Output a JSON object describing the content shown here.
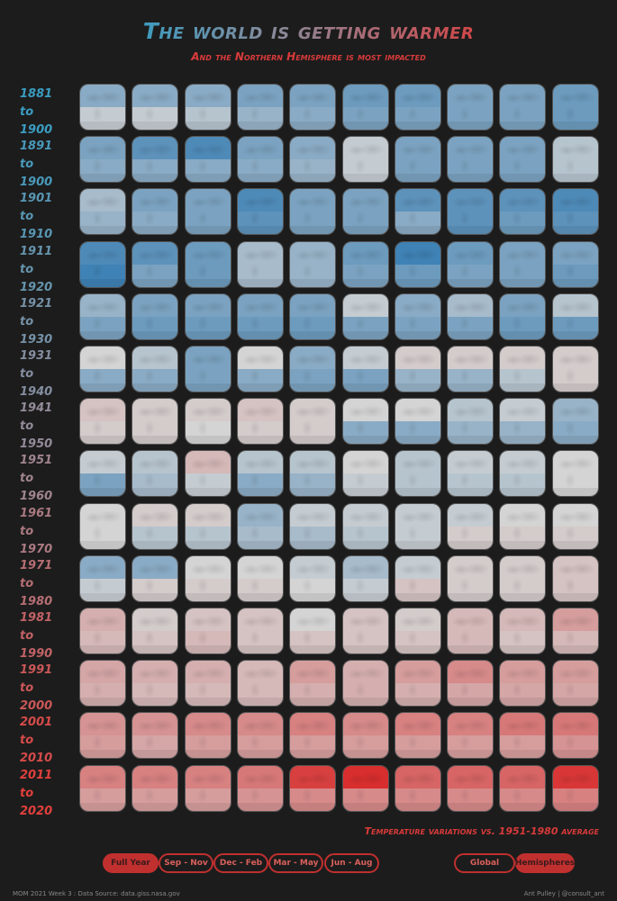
{
  "title": "The world is getting warmer",
  "subtitle": "And the Northern Hemisphere is most impacted",
  "note": "Temperature variations vs. 1951-1980 average",
  "colors": {
    "blue": "#3f82b5",
    "neutral": "#d4d4d4",
    "red": "#d92e2e",
    "label_start": "#3a9cc0",
    "label_mid": "#9a8a96",
    "label_end": "#e0403c"
  },
  "chart_data": {
    "type": "heatmap",
    "description_units": "°C anomaly, top half = Northern Hemisphere, bottom half = Southern Hemisphere",
    "rows": [
      {
        "label": "1881 to 1900",
        "values": [
          [
            -0.25,
            -0.05
          ],
          [
            -0.25,
            -0.05
          ],
          [
            -0.25,
            -0.1
          ],
          [
            -0.3,
            -0.2
          ],
          [
            -0.3,
            -0.25
          ],
          [
            -0.35,
            -0.3
          ],
          [
            -0.35,
            -0.3
          ],
          [
            -0.3,
            -0.3
          ],
          [
            -0.3,
            -0.3
          ],
          [
            -0.35,
            -0.35
          ]
        ]
      },
      {
        "label": "1891 to 1900",
        "values": [
          [
            -0.3,
            -0.25
          ],
          [
            -0.4,
            -0.25
          ],
          [
            -0.45,
            -0.25
          ],
          [
            -0.3,
            -0.25
          ],
          [
            -0.25,
            -0.2
          ],
          [
            -0.05,
            -0.05
          ],
          [
            -0.3,
            -0.3
          ],
          [
            -0.3,
            -0.3
          ],
          [
            -0.3,
            -0.3
          ],
          [
            -0.1,
            -0.1
          ]
        ]
      },
      {
        "label": "1901 to 1910",
        "values": [
          [
            -0.15,
            -0.2
          ],
          [
            -0.3,
            -0.25
          ],
          [
            -0.3,
            -0.3
          ],
          [
            -0.45,
            -0.4
          ],
          [
            -0.3,
            -0.3
          ],
          [
            -0.3,
            -0.3
          ],
          [
            -0.4,
            -0.25
          ],
          [
            -0.4,
            -0.4
          ],
          [
            -0.4,
            -0.35
          ],
          [
            -0.45,
            -0.4
          ]
        ]
      },
      {
        "label": "1911 to 1920",
        "values": [
          [
            -0.45,
            -0.5
          ],
          [
            -0.4,
            -0.3
          ],
          [
            -0.35,
            -0.35
          ],
          [
            -0.15,
            -0.15
          ],
          [
            -0.2,
            -0.2
          ],
          [
            -0.35,
            -0.3
          ],
          [
            -0.5,
            -0.35
          ],
          [
            -0.35,
            -0.3
          ],
          [
            -0.3,
            -0.3
          ],
          [
            -0.3,
            -0.35
          ]
        ]
      },
      {
        "label": "1921 to 1930",
        "values": [
          [
            -0.2,
            -0.3
          ],
          [
            -0.3,
            -0.35
          ],
          [
            -0.3,
            -0.35
          ],
          [
            -0.3,
            -0.35
          ],
          [
            -0.3,
            -0.35
          ],
          [
            -0.05,
            -0.3
          ],
          [
            -0.25,
            -0.3
          ],
          [
            -0.15,
            -0.3
          ],
          [
            -0.3,
            -0.35
          ],
          [
            -0.1,
            -0.35
          ]
        ]
      },
      {
        "label": "1931 to 1940",
        "values": [
          [
            0,
            -0.25
          ],
          [
            -0.1,
            -0.25
          ],
          [
            -0.3,
            -0.3
          ],
          [
            0,
            -0.25
          ],
          [
            -0.25,
            -0.3
          ],
          [
            -0.05,
            -0.3
          ],
          [
            0.05,
            -0.2
          ],
          [
            0.05,
            -0.2
          ],
          [
            0.05,
            -0.1
          ],
          [
            0.05,
            0.05
          ]
        ]
      },
      {
        "label": "1941 to 1950",
        "values": [
          [
            0.1,
            0.05
          ],
          [
            0.05,
            0.05
          ],
          [
            0.05,
            0
          ],
          [
            0.1,
            0.05
          ],
          [
            0.05,
            0.05
          ],
          [
            0,
            -0.25
          ],
          [
            0,
            -0.25
          ],
          [
            -0.1,
            -0.2
          ],
          [
            -0.05,
            -0.2
          ],
          [
            -0.2,
            -0.25
          ]
        ]
      },
      {
        "label": "1951 to 1960",
        "values": [
          [
            -0.05,
            -0.3
          ],
          [
            -0.1,
            -0.15
          ],
          [
            0.15,
            -0.05
          ],
          [
            -0.1,
            -0.25
          ],
          [
            -0.1,
            -0.2
          ],
          [
            0,
            -0.05
          ],
          [
            -0.1,
            -0.1
          ],
          [
            -0.05,
            -0.1
          ],
          [
            -0.05,
            -0.1
          ],
          [
            0,
            0
          ]
        ]
      },
      {
        "label": "1961 to 1970",
        "values": [
          [
            0,
            0
          ],
          [
            0.05,
            -0.1
          ],
          [
            0.05,
            -0.1
          ],
          [
            -0.2,
            -0.15
          ],
          [
            -0.05,
            -0.15
          ],
          [
            -0.05,
            -0.1
          ],
          [
            -0.05,
            -0.05
          ],
          [
            -0.05,
            0.05
          ],
          [
            0,
            0.05
          ],
          [
            0,
            0.05
          ]
        ]
      },
      {
        "label": "1971 to 1980",
        "values": [
          [
            -0.25,
            -0.05
          ],
          [
            -0.25,
            0.05
          ],
          [
            0,
            0.05
          ],
          [
            0,
            0.05
          ],
          [
            -0.05,
            0
          ],
          [
            -0.15,
            -0.05
          ],
          [
            -0.05,
            0.1
          ],
          [
            0.05,
            0.05
          ],
          [
            0.05,
            0.05
          ],
          [
            0.1,
            0.1
          ]
        ]
      },
      {
        "label": "1981 to 1990",
        "values": [
          [
            0.2,
            0.15
          ],
          [
            0.05,
            0.1
          ],
          [
            0.1,
            0.15
          ],
          [
            0.1,
            0.1
          ],
          [
            0,
            0.1
          ],
          [
            0.1,
            0.1
          ],
          [
            0.05,
            0.1
          ],
          [
            0.15,
            0.15
          ],
          [
            0.15,
            0.1
          ],
          [
            0.3,
            0.15
          ]
        ]
      },
      {
        "label": "1991 to 2000",
        "values": [
          [
            0.25,
            0.2
          ],
          [
            0.2,
            0.15
          ],
          [
            0.2,
            0.15
          ],
          [
            0.15,
            0.15
          ],
          [
            0.3,
            0.2
          ],
          [
            0.2,
            0.2
          ],
          [
            0.3,
            0.2
          ],
          [
            0.4,
            0.25
          ],
          [
            0.3,
            0.25
          ],
          [
            0.3,
            0.25
          ]
        ]
      },
      {
        "label": "2001 to 2010",
        "values": [
          [
            0.35,
            0.3
          ],
          [
            0.35,
            0.25
          ],
          [
            0.4,
            0.3
          ],
          [
            0.4,
            0.3
          ],
          [
            0.45,
            0.3
          ],
          [
            0.4,
            0.3
          ],
          [
            0.45,
            0.3
          ],
          [
            0.45,
            0.3
          ],
          [
            0.5,
            0.3
          ],
          [
            0.5,
            0.35
          ]
        ]
      },
      {
        "label": "2011 to 2020",
        "values": [
          [
            0.45,
            0.3
          ],
          [
            0.45,
            0.3
          ],
          [
            0.45,
            0.3
          ],
          [
            0.5,
            0.35
          ],
          [
            0.8,
            0.4
          ],
          [
            0.9,
            0.4
          ],
          [
            0.6,
            0.4
          ],
          [
            0.6,
            0.4
          ],
          [
            0.6,
            0.4
          ],
          [
            0.85,
            0.45
          ]
        ]
      }
    ],
    "color_scale": {
      "min": -0.5,
      "mid": 0,
      "max": 0.9
    }
  },
  "season_buttons": [
    {
      "label": "Full Year",
      "active": true
    },
    {
      "label": "Sep - Nov",
      "active": false
    },
    {
      "label": "Dec - Feb",
      "active": false
    },
    {
      "label": "Mar - May",
      "active": false
    },
    {
      "label": "Jun - Aug",
      "active": false
    }
  ],
  "scope_buttons": [
    {
      "label": "Global",
      "active": false
    },
    {
      "label": "Hemispheres",
      "active": true
    }
  ],
  "footer": {
    "left": "MOM 2021 Week 3 : Data Source: data.giss.nasa.gov",
    "right": "Ant Pulley | @consult_ant"
  }
}
